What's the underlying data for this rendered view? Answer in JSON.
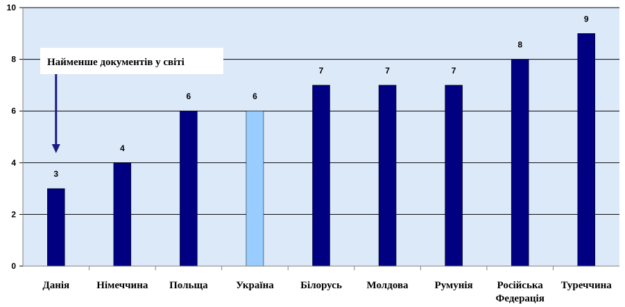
{
  "chart_data": {
    "type": "bar",
    "categories": [
      "Данія",
      "Німеччина",
      "Польща",
      "Україна",
      "Білорусь",
      "Молдова",
      "Румунія",
      "Російська Федерація",
      "Туреччина"
    ],
    "category_lines": [
      [
        "Данія"
      ],
      [
        "Німеччина"
      ],
      [
        "Польща"
      ],
      [
        "Україна"
      ],
      [
        "Білорусь"
      ],
      [
        "Молдова"
      ],
      [
        "Румунія"
      ],
      [
        "Російська",
        "Федерація"
      ],
      [
        "Туреччина"
      ]
    ],
    "values": [
      3,
      4,
      6,
      6,
      7,
      7,
      7,
      8,
      9
    ],
    "highlight_category": "Україна",
    "ylim": [
      0,
      10
    ],
    "yticks": [
      0,
      2,
      4,
      6,
      8,
      10
    ],
    "grid": true,
    "data_labels": true,
    "colors": {
      "bar": "#000080",
      "highlight_bar": "#99ccff",
      "plot_bg": "#dce9f8",
      "grid": "#000000",
      "arrow": "#1a1a80"
    },
    "annotation": {
      "text": "Найменше документів у світі",
      "target_category": "Данія"
    },
    "title": "",
    "xlabel": "",
    "ylabel": ""
  }
}
